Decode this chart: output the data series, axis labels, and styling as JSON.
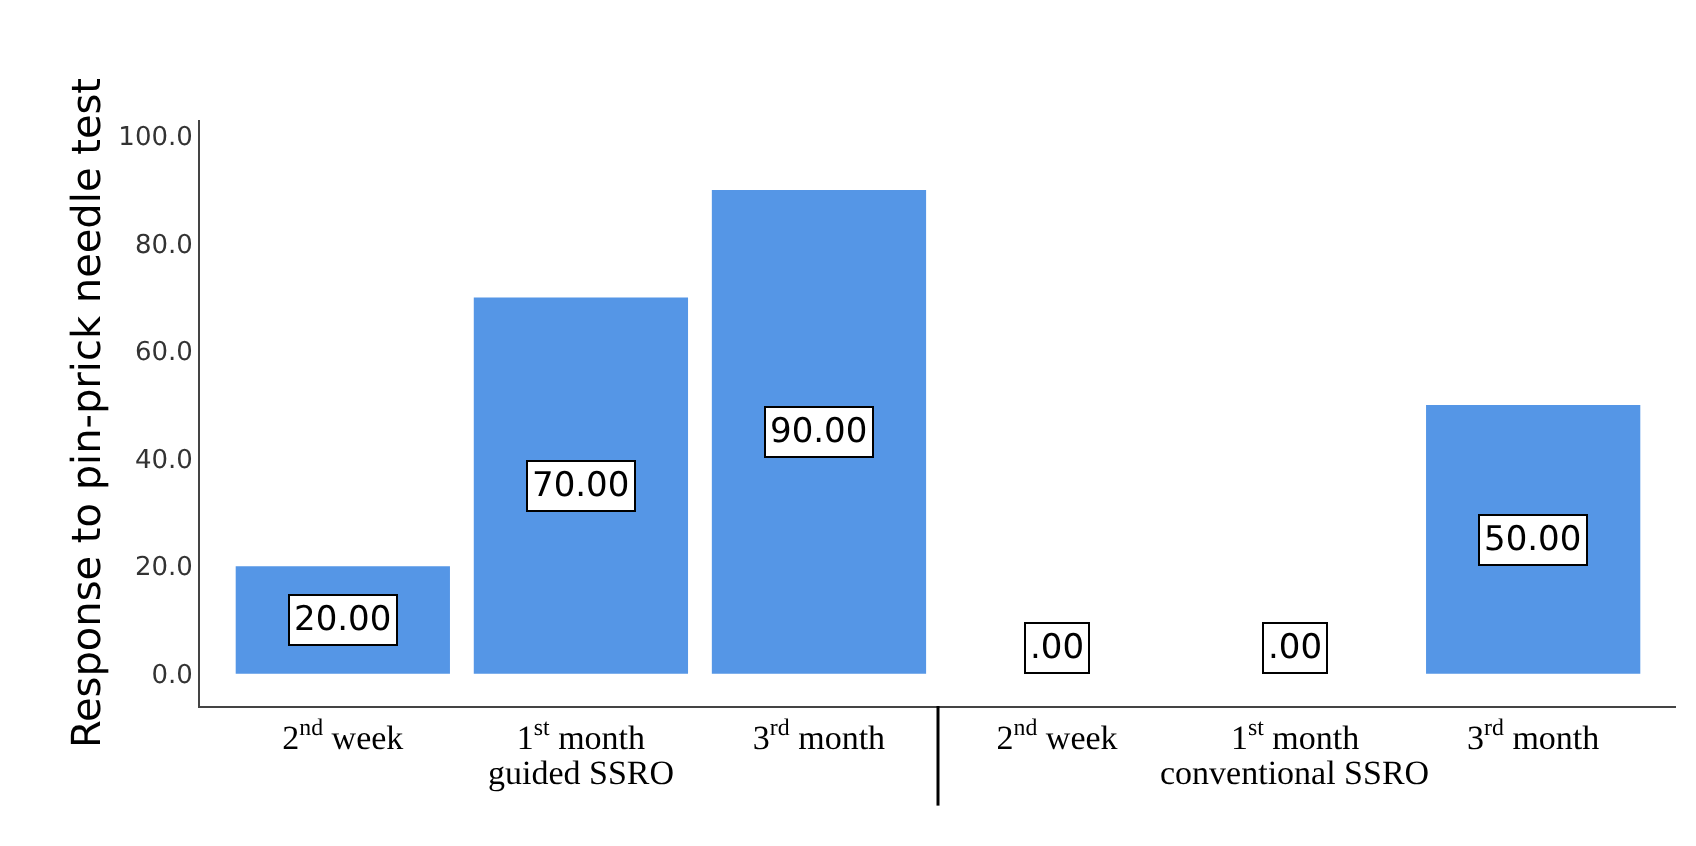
{
  "chart_data": {
    "type": "bar",
    "ylabel": "Response to pin-prick needle test",
    "categories": [
      "2$^{nd}$ week",
      "1$^{st}$ month",
      "3$^{rd}$ month",
      "2$^{nd}$ week",
      "1$^{st}$ month",
      "3$^{rd}$ month"
    ],
    "values": [
      20,
      70,
      90,
      0,
      0,
      50
    ],
    "value_labels": [
      "20.00",
      "70.00",
      "90.00",
      ".00",
      ".00",
      "50.00"
    ],
    "color": "#5596e6",
    "ylim": [
      -6,
      103
    ],
    "yticks": [
      {
        "value": 0,
        "label": "0.0"
      },
      {
        "value": 20,
        "label": "20.0"
      },
      {
        "value": 40,
        "label": "40.0"
      },
      {
        "value": 60,
        "label": "60.0"
      },
      {
        "value": 80,
        "label": "80.0"
      },
      {
        "value": 100,
        "label": "100.0"
      }
    ],
    "annotations": [
      "guided SSRO",
      "conventional SSRO"
    ],
    "grid": false,
    "legend": false
  }
}
